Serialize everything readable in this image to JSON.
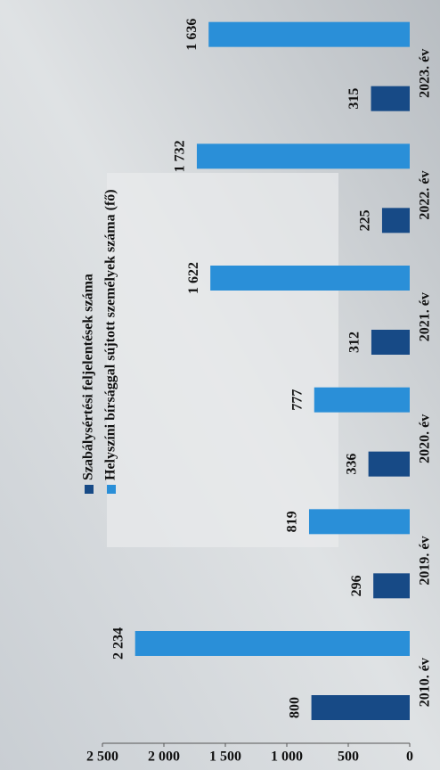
{
  "chart_data": {
    "type": "bar",
    "orientation": "horizontal",
    "categories": [
      "2010. év",
      "2019. év",
      "2020. év",
      "2021. év",
      "2022. év",
      "2023. év"
    ],
    "series": [
      {
        "name": "Szabálysértési feljelentések száma",
        "color": "#174a86",
        "values": [
          800,
          296,
          336,
          312,
          225,
          315
        ]
      },
      {
        "name": "Helyszíni bírsággal sújtott személyek száma (fő)",
        "color": "#2a8fd8",
        "values": [
          2234,
          819,
          777,
          1622,
          1732,
          1636
        ],
        "value_labels": [
          "2 234",
          "819",
          "777",
          "1 622",
          "1 732",
          "1 636"
        ]
      }
    ],
    "ylim": [
      0,
      2500
    ],
    "yticks": [
      0,
      500,
      {
        "value": 1000,
        "label": "1 000"
      },
      {
        "value": 1500,
        "label": "1 500"
      },
      {
        "value": 2000,
        "label": "2 000"
      },
      {
        "value": 2500,
        "label": "2 500"
      }
    ]
  }
}
